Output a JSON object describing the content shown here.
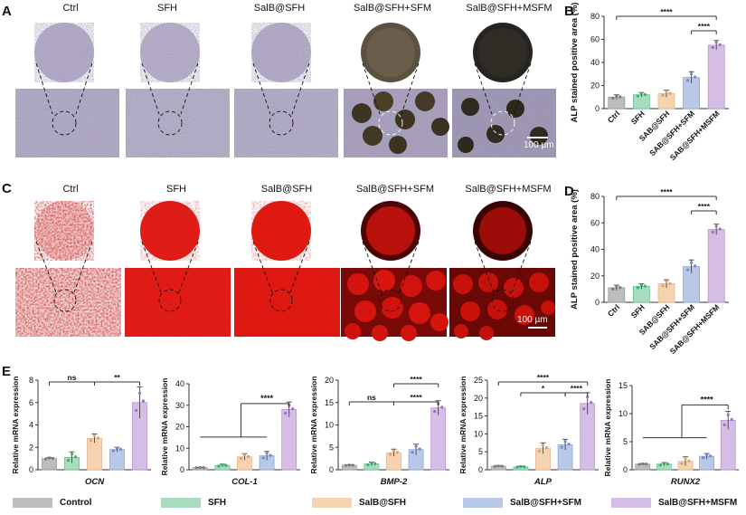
{
  "panels": {
    "A": "A",
    "B": "B",
    "C": "C",
    "D": "D",
    "E": "E"
  },
  "groups": [
    "Ctrl",
    "SFH",
    "SalB@SFH",
    "SalB@SFH+SFM",
    "SalB@SFH+MSFM"
  ],
  "scale_bar_label": "100 µm",
  "colors": {
    "control": "#bdbdbd",
    "sfh": "#a8dcbf",
    "salb": "#f6d3b0",
    "salb_sfm": "#b9c8e6",
    "salb_msfm": "#d6bde6",
    "alp_stain": "#8a7ea8",
    "ars_stain": "#e02020"
  },
  "chart_data": [
    {
      "id": "B",
      "type": "bar",
      "categories": [
        "Ctrl",
        "SFH",
        "SAB@SFH",
        "SAB@SFH+SFM",
        "SAB@SFH+MSFM"
      ],
      "values": [
        10,
        12,
        13,
        27,
        55
      ],
      "errors": [
        2,
        2,
        3,
        5,
        4
      ],
      "ylabel": "ALP stained positive area (%)",
      "ylim": [
        0,
        80
      ],
      "yticks": [
        "0",
        "20",
        "40",
        "60",
        "80"
      ],
      "annotations": [
        "****",
        "****"
      ]
    },
    {
      "id": "D",
      "type": "bar",
      "categories": [
        "Ctrl",
        "SFH",
        "SAB@SFH",
        "SAB@SFH+SFM",
        "SAB@SFH+MSFM"
      ],
      "values": [
        11,
        12,
        14,
        27,
        55
      ],
      "errors": [
        2,
        2,
        3,
        5,
        4
      ],
      "ylabel": "ALP stained positive area (%)",
      "ylim": [
        0,
        80
      ],
      "yticks": [
        "0",
        "20",
        "40",
        "60",
        "80"
      ],
      "annotations": [
        "****",
        "****"
      ]
    },
    {
      "id": "OCN",
      "type": "bar",
      "gene": "OCN",
      "categories": [
        "Control",
        "SFH",
        "SalB@SFH",
        "SalB@SFH+SFM",
        "SalB@SFH+MSFM"
      ],
      "values": [
        1.0,
        1.1,
        2.8,
        1.8,
        6.0
      ],
      "errors": [
        0.1,
        0.5,
        0.4,
        0.2,
        1.4
      ],
      "ylabel": "Relative mRNA expression",
      "ylim": [
        0,
        8
      ],
      "yticks": [
        "0",
        "2",
        "4",
        "6",
        "8"
      ],
      "annotations": [
        "ns",
        "**"
      ]
    },
    {
      "id": "COL-1",
      "type": "bar",
      "gene": "COL-1",
      "categories": [
        "Control",
        "SFH",
        "SalB@SFH",
        "SalB@SFH+SFM",
        "SalB@SFH+MSFM"
      ],
      "values": [
        1.0,
        2.0,
        6.0,
        6.5,
        28.0
      ],
      "errors": [
        0.1,
        0.6,
        1.5,
        2.0,
        3.5
      ],
      "ylabel": "Relative mRNA expression",
      "ylim": [
        0,
        40
      ],
      "yticks": [
        "0",
        "10",
        "20",
        "30",
        "40"
      ],
      "annotations": [
        "****"
      ]
    },
    {
      "id": "BMP-2",
      "type": "bar",
      "gene": "BMP-2",
      "categories": [
        "Control",
        "SFH",
        "SalB@SFH",
        "SalB@SFH+SFM",
        "SalB@SFH+MSFM"
      ],
      "values": [
        1.0,
        1.3,
        3.8,
        4.5,
        13.8
      ],
      "errors": [
        0.1,
        0.4,
        0.8,
        1.2,
        1.6
      ],
      "ylabel": "Relative mRNA expression",
      "ylim": [
        0,
        20
      ],
      "yticks": [
        "0",
        "5",
        "10",
        "15",
        "20"
      ],
      "annotations": [
        "****",
        "ns",
        "****"
      ]
    },
    {
      "id": "ALP",
      "type": "bar",
      "gene": "ALP",
      "categories": [
        "Control",
        "SFH",
        "SalB@SFH",
        "SalB@SFH+SFM",
        "SalB@SFH+MSFM"
      ],
      "values": [
        1.0,
        0.8,
        6.0,
        7.0,
        18.5
      ],
      "errors": [
        0.1,
        0.2,
        1.5,
        1.5,
        3.0
      ],
      "ylabel": "Relative mRNA expression",
      "ylim": [
        0,
        25
      ],
      "yticks": [
        "0",
        "5",
        "10",
        "15",
        "20",
        "25"
      ],
      "annotations": [
        "****",
        "*",
        "****"
      ]
    },
    {
      "id": "RUNX2",
      "type": "bar",
      "gene": "RUNX2",
      "categories": [
        "Control",
        "SFH",
        "SalB@SFH",
        "SalB@SFH+SFM",
        "SalB@SFH+MSFM"
      ],
      "values": [
        1.0,
        1.0,
        1.5,
        2.4,
        8.8
      ],
      "errors": [
        0.1,
        0.3,
        0.8,
        0.5,
        1.6
      ],
      "ylabel": "Relative mRNA expression",
      "ylim": [
        0,
        15
      ],
      "yticks": [
        "0",
        "5",
        "10",
        "15"
      ],
      "annotations": [
        "****"
      ]
    }
  ],
  "legend": [
    "Control",
    "SFH",
    "SalB@SFH",
    "SalB@SFH+SFM",
    "SalB@SFH+MSFM"
  ]
}
